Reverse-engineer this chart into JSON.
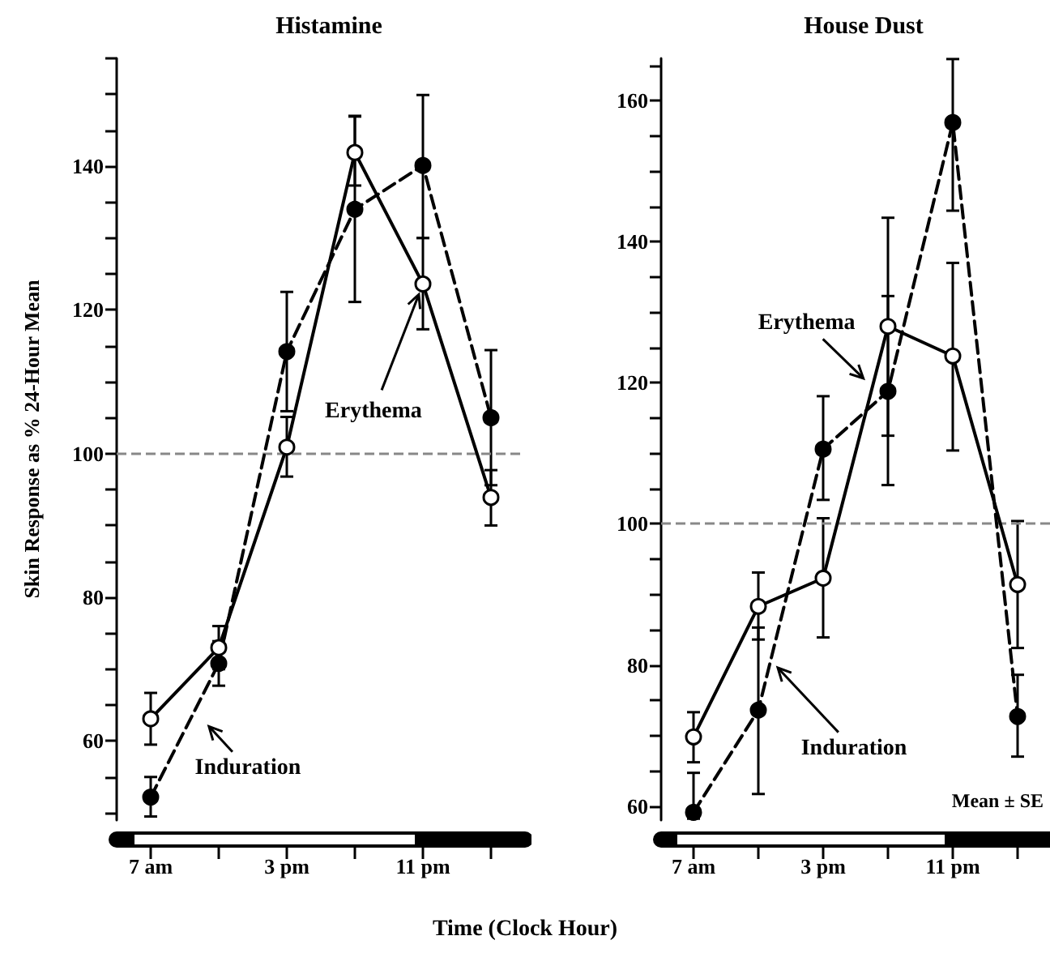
{
  "chart_data": [
    {
      "type": "line",
      "title": "Histamine",
      "ylabel": "Skin Response as % 24-Hour Mean",
      "xlabel": "Time (Clock Hour)",
      "categories": [
        "7 am",
        null,
        "3 pm",
        null,
        "11 pm",
        null
      ],
      "ylim": [
        49,
        155
      ],
      "yticks": [
        {
          "value": 50,
          "label": null
        },
        {
          "value": 55,
          "label": null
        },
        60,
        {
          "value": 65,
          "label": null
        },
        {
          "value": 70,
          "label": null
        },
        {
          "value": 75,
          "label": null
        },
        80,
        {
          "value": 85,
          "label": null
        },
        {
          "value": 90,
          "label": null
        },
        {
          "value": 95,
          "label": null
        },
        100,
        {
          "value": 105,
          "label": null
        },
        {
          "value": 110,
          "label": null
        },
        {
          "value": 115,
          "label": null
        },
        120,
        {
          "value": 125,
          "label": null
        },
        {
          "value": 130,
          "label": null
        },
        {
          "value": 135,
          "label": null
        },
        140,
        {
          "value": 145,
          "label": null
        },
        {
          "value": 150,
          "label": null
        },
        {
          "value": 155,
          "label": null
        }
      ],
      "marker": "circle",
      "grid": false,
      "series": [
        {
          "color": "#000000",
          "line_style": "solid",
          "values": [
            63.1,
            73.0,
            100.9,
            141.9,
            123.6,
            93.9
          ],
          "errors": [
            [
              59.5,
              66.7
            ],
            [
              70,
              76
            ],
            [
              96.8,
              105.1
            ],
            [
              137.3,
              146.9
            ],
            [
              117.3,
              130
            ],
            [
              90,
              97.7
            ]
          ]
        },
        {
          "color": "#000000",
          "line_style": "dashed",
          "values": [
            52.2,
            70.8,
            114.2,
            134,
            140.1,
            105
          ],
          "errors": [
            [
              49.5,
              55
            ],
            [
              67.7,
              73.9
            ],
            [
              105.9,
              122.5
            ],
            [
              121.1,
              147
            ],
            [
              130,
              149.9
            ],
            [
              95.6,
              114.4
            ]
          ]
        }
      ],
      "ref_lines": [
        {
          "axis": "y",
          "value": 100,
          "color": "#888888",
          "line_style": "dashed"
        }
      ],
      "annotations": [
        {
          "text": "Erythema",
          "x": "11 pm",
          "y": 123.6
        },
        "Induration"
      ]
    },
    {
      "type": "line",
      "title": "House Dust",
      "categories": [
        "7 am",
        null,
        "3 pm",
        null,
        "11 pm",
        null
      ],
      "ylim": [
        58,
        166
      ],
      "yticks": [
        60,
        {
          "value": 65,
          "label": null
        },
        {
          "value": 70,
          "label": null
        },
        {
          "value": 75,
          "label": null
        },
        80,
        {
          "value": 85,
          "label": null
        },
        {
          "value": 90,
          "label": null
        },
        {
          "value": 95,
          "label": null
        },
        100,
        {
          "value": 105,
          "label": null
        },
        {
          "value": 110,
          "label": null
        },
        {
          "value": 115,
          "label": null
        },
        120,
        {
          "value": 125,
          "label": null
        },
        {
          "value": 130,
          "label": null
        },
        {
          "value": 135,
          "label": null
        },
        140,
        {
          "value": 145,
          "label": null
        },
        {
          "value": 150,
          "label": null
        },
        {
          "value": 155,
          "label": null
        },
        160,
        {
          "value": 165,
          "label": null
        }
      ],
      "marker": "circle",
      "grid": false,
      "series": [
        {
          "color": "#000000",
          "line_style": "solid",
          "values": [
            69.8,
            88.3,
            92.3,
            128,
            123.8,
            91.4
          ],
          "errors": [
            [
              66.2,
              73.3
            ],
            [
              83.6,
              93.1
            ],
            [
              83.9,
              100.8
            ],
            [
              112.5,
              143.4
            ],
            [
              110.4,
              137
            ],
            [
              82.4,
              100.4
            ]
          ]
        },
        {
          "color": "#000000",
          "line_style": "dashed",
          "values": [
            59.1,
            73.6,
            110.6,
            118.8,
            156.9,
            72.7
          ],
          "errors": [
            [
              58.2,
              64.7
            ],
            [
              61.7,
              85.3
            ],
            [
              103.4,
              118.1
            ],
            [
              105.5,
              132.3
            ],
            [
              144.4,
              165.9
            ],
            [
              67,
              78.6
            ]
          ]
        }
      ],
      "ref_lines": [
        {
          "axis": "y",
          "value": 100,
          "color": "#888888",
          "line_style": "dashed"
        }
      ],
      "annotations": [
        "Erythema",
        "Induration",
        "Mean ± SE"
      ]
    }
  ]
}
